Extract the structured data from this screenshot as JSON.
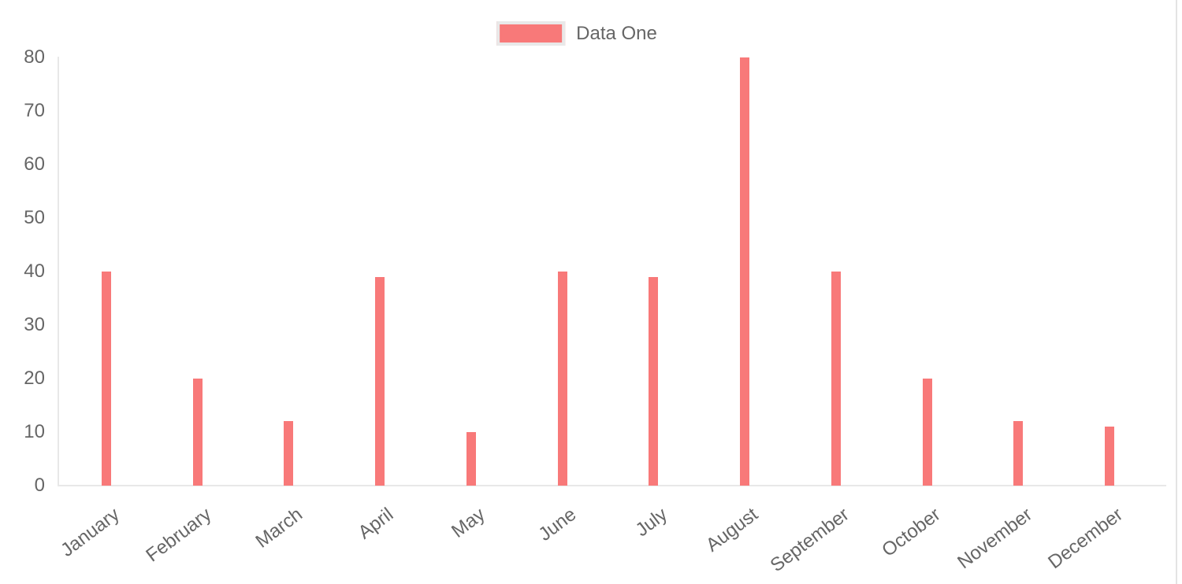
{
  "chart_data": {
    "type": "bar",
    "title": "",
    "categories": [
      "January",
      "February",
      "March",
      "April",
      "May",
      "June",
      "July",
      "August",
      "September",
      "October",
      "November",
      "December"
    ],
    "series": [
      {
        "name": "Data One",
        "color": "#f87979",
        "values": [
          40,
          20,
          12,
          39,
          10,
          40,
          39,
          80,
          40,
          20,
          12,
          11
        ]
      }
    ],
    "xlabel": "",
    "ylabel": "",
    "ylim": [
      0,
      80
    ],
    "yticks": [
      0,
      10,
      20,
      30,
      40,
      50,
      60,
      70,
      80
    ],
    "grid": false,
    "legend_position": "top",
    "x_tick_rotation_deg": -37
  },
  "legend": {
    "label": "Data One",
    "swatch_color": "#f87979",
    "swatch_border_color": "#e9e9e9"
  },
  "colors": {
    "bar": "#f87979",
    "axis_line": "#e8e8e8",
    "tick_text": "#666666",
    "right_edge_line": "#e4e4e4",
    "background": "#ffffff"
  }
}
